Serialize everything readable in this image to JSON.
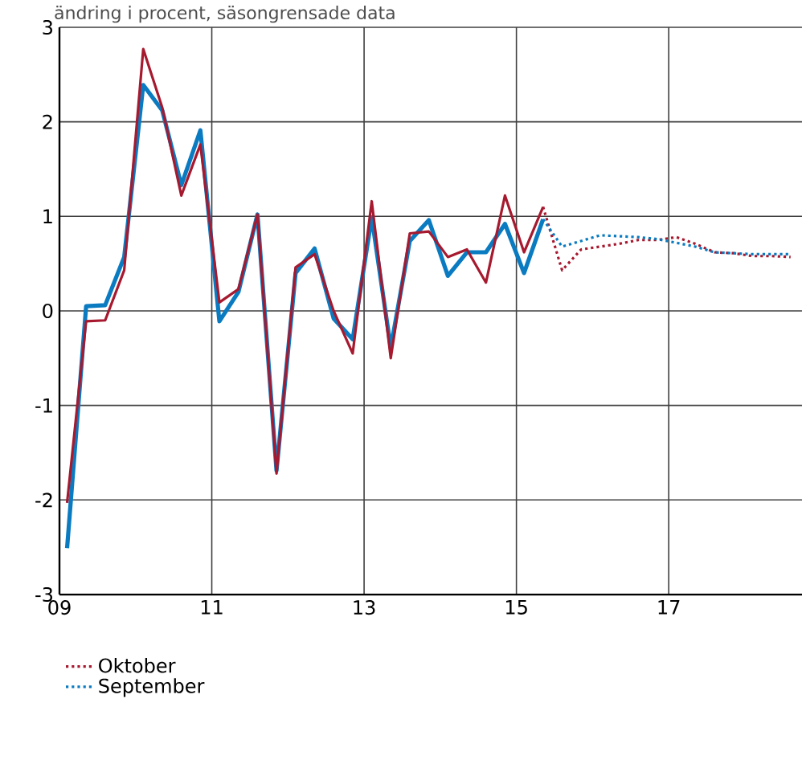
{
  "chart_data": {
    "type": "line",
    "title": "ändring i procent, säsongrensade data",
    "xlim": [
      2009,
      2018.75
    ],
    "xticks": [
      {
        "value": 2009,
        "label": "09"
      },
      {
        "value": 2011,
        "label": "11"
      },
      {
        "value": 2013,
        "label": "13"
      },
      {
        "value": 2015,
        "label": "15"
      },
      {
        "value": 2017,
        "label": "17"
      }
    ],
    "ylim": [
      -3,
      3
    ],
    "yticks": [
      -3,
      -2,
      -1,
      0,
      1,
      2,
      3
    ],
    "grid": true,
    "legend": "bottom",
    "marker": "none",
    "series": [
      {
        "color": "#0a7bc1",
        "line_style": "solid",
        "x": [
          2009.1,
          2009.35,
          2009.6,
          2009.85,
          2010.1,
          2010.35,
          2010.6,
          2010.85,
          2011.1,
          2011.35,
          2011.6,
          2011.85,
          2012.1,
          2012.35,
          2012.6,
          2012.85,
          2013.1,
          2013.35,
          2013.6,
          2013.85,
          2014.1,
          2014.35,
          2014.6,
          2014.85,
          2015.1,
          2015.35
        ],
        "values": [
          -2.51,
          0.05,
          0.06,
          0.57,
          2.39,
          2.12,
          1.33,
          1.91,
          -0.11,
          0.2,
          1.02,
          -1.69,
          0.4,
          0.66,
          -0.08,
          -0.3,
          0.99,
          -0.39,
          0.74,
          0.96,
          0.37,
          0.62,
          0.62,
          0.92,
          0.4,
          0.97
        ]
      },
      {
        "color": "#a6192e",
        "line_style": "solid",
        "x": [
          2009.1,
          2009.35,
          2009.6,
          2009.85,
          2010.1,
          2010.35,
          2010.6,
          2010.85,
          2011.1,
          2011.35,
          2011.6,
          2011.85,
          2012.1,
          2012.35,
          2012.6,
          2012.85,
          2013.1,
          2013.35,
          2013.6,
          2013.85,
          2014.1,
          2014.35,
          2014.6,
          2014.85,
          2015.1,
          2015.35
        ],
        "values": [
          -2.03,
          -0.11,
          -0.1,
          0.43,
          2.77,
          2.15,
          1.22,
          1.76,
          0.09,
          0.23,
          1.02,
          -1.72,
          0.46,
          0.6,
          0.0,
          -0.45,
          1.16,
          -0.5,
          0.82,
          0.84,
          0.57,
          0.65,
          0.3,
          1.22,
          0.62,
          1.1
        ]
      },
      {
        "name": "September",
        "color": "#0a7bc1",
        "line_style": "dotted",
        "x": [
          2015.35,
          2015.6,
          2015.85,
          2016.1,
          2016.35,
          2016.6,
          2016.85,
          2017.1,
          2017.35,
          2017.6,
          2017.85,
          2018.1,
          2018.35,
          2018.6
        ],
        "values": [
          0.97,
          0.68,
          0.74,
          0.8,
          0.79,
          0.78,
          0.76,
          0.72,
          0.68,
          0.62,
          0.61,
          0.6,
          0.6,
          0.6
        ]
      },
      {
        "name": "Oktober",
        "color": "#a6192e",
        "line_style": "dotted",
        "x": [
          2015.35,
          2015.6,
          2015.85,
          2016.1,
          2016.35,
          2016.6,
          2016.85,
          2017.1,
          2017.35,
          2017.6,
          2017.85,
          2018.1,
          2018.35,
          2018.6
        ],
        "values": [
          1.1,
          0.43,
          0.65,
          0.68,
          0.71,
          0.75,
          0.75,
          0.78,
          0.71,
          0.62,
          0.61,
          0.58,
          0.58,
          0.57
        ]
      }
    ]
  }
}
